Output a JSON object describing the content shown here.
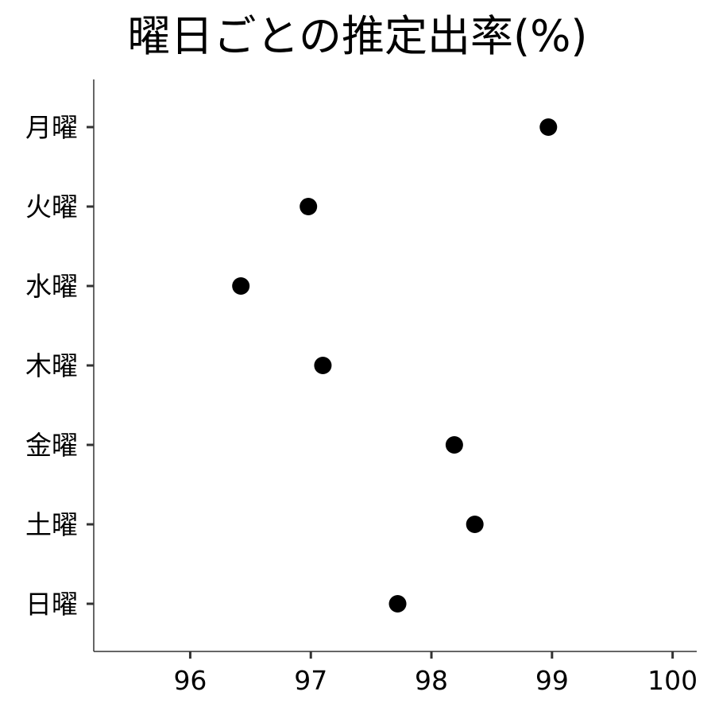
{
  "chart_data": {
    "type": "scatter",
    "title": "曜日ごとの推定出率(%)",
    "xlabel": "",
    "ylabel": "",
    "categories": [
      "月曜",
      "火曜",
      "水曜",
      "木曜",
      "金曜",
      "土曜",
      "日曜"
    ],
    "values": [
      98.97,
      96.98,
      96.42,
      97.1,
      98.19,
      98.36,
      97.72
    ],
    "xlim": [
      95.2,
      100.2
    ],
    "xticks": [
      96,
      97,
      98,
      99,
      100
    ],
    "xtick_labels": [
      "96",
      "97",
      "98",
      "99",
      "100"
    ],
    "grid": false,
    "marker_color": "#000000",
    "axis_color": "#333333"
  }
}
